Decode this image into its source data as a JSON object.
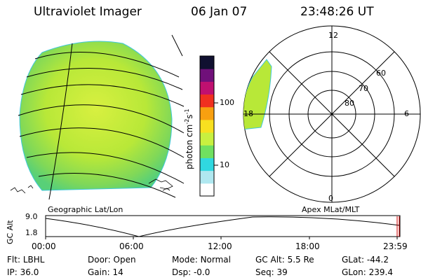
{
  "header": {
    "title": "Ultraviolet Imager",
    "date": "06 Jan 07",
    "time": "23:48:26 UT"
  },
  "geo_panel": {
    "label": "Geographic Lat/Lon"
  },
  "colorbar": {
    "unit_main": "photon cm",
    "unit_exp1": "-2",
    "unit_s": "s",
    "unit_exp2": "-1",
    "ticks": [
      "100",
      "10"
    ],
    "colors": [
      "#ffffff",
      "#b0e8f0",
      "#30d8e0",
      "#70e060",
      "#c8f040",
      "#f8e020",
      "#f8a010",
      "#f03020",
      "#c01070",
      "#70107a",
      "#101030"
    ]
  },
  "polar_panel": {
    "label": "Apex MLat/MLT",
    "mlt_labels": [
      "12",
      "18",
      "6",
      "0"
    ],
    "lat_labels": [
      "60",
      "70",
      "80"
    ]
  },
  "timeline": {
    "axis_label": "GC Alt",
    "y_ticks": [
      "9.0",
      "1.8"
    ],
    "x_ticks": [
      "00:00",
      "06:00",
      "12:00",
      "18:00",
      "23:59"
    ]
  },
  "info": {
    "row1": [
      {
        "key": "Flt",
        "value": "LBHL"
      },
      {
        "key": "Door",
        "value": "Open"
      },
      {
        "key": "Mode",
        "value": "Normal"
      },
      {
        "key": "GC Alt",
        "value": "5.5 Re"
      },
      {
        "key": "GLat",
        "value": "-44.2"
      }
    ],
    "row2": [
      {
        "key": "IP",
        "value": "36.0"
      },
      {
        "key": "Gain",
        "value": "14"
      },
      {
        "key": "Dsp",
        "value": "-0.0"
      },
      {
        "key": "Seq",
        "value": "39"
      },
      {
        "key": "GLon",
        "value": "239.4"
      }
    ]
  }
}
